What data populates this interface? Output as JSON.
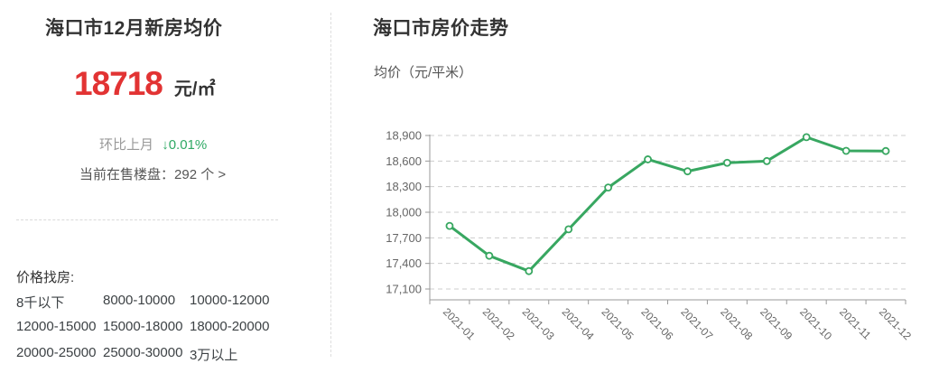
{
  "left_panel": {
    "title": "海口市12月新房均价",
    "price": {
      "value": "18718",
      "unit": "元/㎡"
    },
    "change": {
      "label": "环比上月",
      "value": "↓0.01%"
    },
    "listings": {
      "label": "当前在售楼盘：",
      "value": "292 个 >"
    },
    "price_search": {
      "label": "价格找房:",
      "options": [
        "8千以下",
        "8000-10000",
        "10000-12000",
        "12000-15000",
        "15000-18000",
        "18000-20000",
        "20000-25000",
        "25000-30000",
        "3万以上"
      ]
    }
  },
  "right_panel": {
    "title": "海口市房价走势",
    "subtitle": "均价（元/平米）"
  },
  "chart_data": {
    "type": "line",
    "title": "海口市房价走势",
    "ylabel": "均价（元/平米）",
    "x": [
      "2021-01",
      "2021-02",
      "2021-03",
      "2021-04",
      "2021-05",
      "2021-06",
      "2021-07",
      "2021-08",
      "2021-09",
      "2021-10",
      "2021-11",
      "2021-12"
    ],
    "values": [
      17840,
      17490,
      17310,
      17800,
      18290,
      18620,
      18480,
      18580,
      18600,
      18880,
      18720,
      18718
    ],
    "ylim": [
      17100,
      18900
    ],
    "ytick_step": 300,
    "yticks": [
      "18,900",
      "18,600",
      "18,300",
      "18,000",
      "17,700",
      "17,400",
      "17,100"
    ],
    "grid": true,
    "legend": false,
    "marker": "circle-empty",
    "line_color": "#38a761",
    "gridline_color": "#cccccc",
    "axis_color": "#999999",
    "tick_label_color": "#666666"
  },
  "colors": {
    "accent_red": "#e23333",
    "accent_green": "#2fa965",
    "text_dark": "#333333",
    "text_gray": "#999999"
  }
}
